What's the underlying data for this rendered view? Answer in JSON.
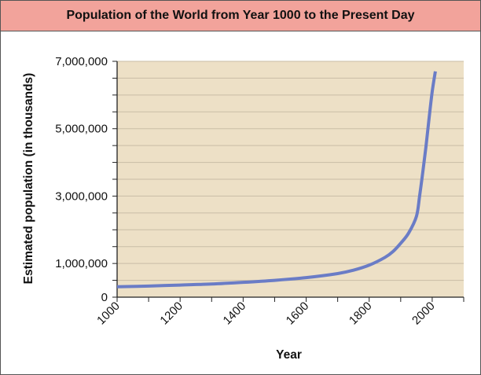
{
  "chart_data": {
    "type": "line",
    "title": "Population of the World from Year 1000 to the Present Day",
    "xlabel": "Year",
    "ylabel": "Estimated population (in thousands)",
    "xlim": [
      1000,
      2100
    ],
    "ylim": [
      0,
      7000000
    ],
    "x_ticks": [
      1000,
      1200,
      1400,
      1600,
      1800,
      2000
    ],
    "x_tick_labels": [
      "1000",
      "1200",
      "1400",
      "1600",
      "1800",
      "2000"
    ],
    "y_ticks": [
      0,
      1000000,
      3000000,
      5000000,
      7000000
    ],
    "y_tick_labels": [
      "0",
      "1,000,000",
      "3,000,000",
      "5,000,000",
      "7,000,000"
    ],
    "grid": true,
    "series": [
      {
        "x": [
          1000,
          1100,
          1200,
          1300,
          1400,
          1500,
          1600,
          1700,
          1750,
          1800,
          1850,
          1875,
          1900,
          1925,
          1950,
          1960,
          1970,
          1980,
          1990,
          2000,
          2010
        ],
        "y": [
          310000,
          330000,
          360000,
          390000,
          440000,
          500000,
          580000,
          700000,
          800000,
          950000,
          1180000,
          1350000,
          1600000,
          1900000,
          2400000,
          3000000,
          3700000,
          4450000,
          5300000,
          6100000,
          6700000
        ]
      }
    ]
  },
  "colors": {
    "title_background": "#f2a39b",
    "plot_background": "#ede0c6",
    "grid": "#c9bda6",
    "line": "#6a7cc6",
    "axis": "#222222"
  }
}
